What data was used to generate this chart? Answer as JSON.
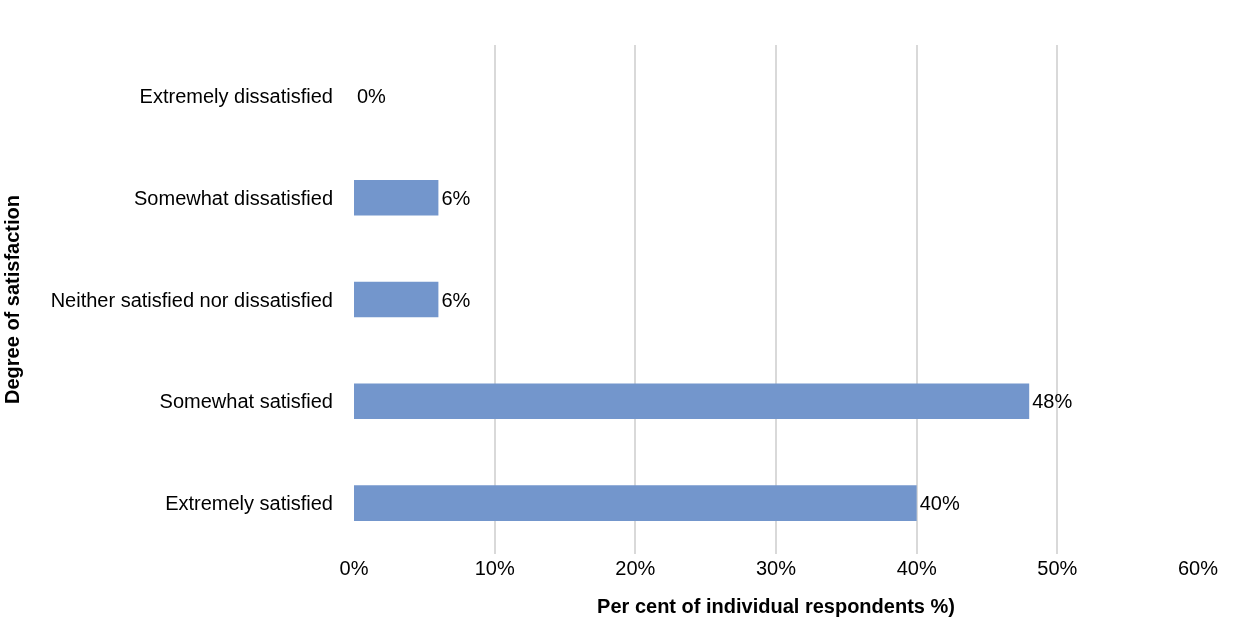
{
  "chart_data": {
    "type": "bar",
    "orientation": "horizontal",
    "xlabel": "Per cent of individual respondents %)",
    "ylabel": "Degree of satisfaction",
    "categories": [
      "Extremely dissatisfied",
      "Somewhat dissatisfied",
      "Neither satisfied nor dissatisfied",
      "Somewhat satisfied",
      "Extremely satisfied"
    ],
    "values": [
      0,
      6,
      6,
      48,
      40
    ],
    "value_labels": [
      "0%",
      "6%",
      "6%",
      "48%",
      "40%"
    ],
    "color": "#7396cc",
    "xlim": [
      0,
      60
    ],
    "xticks": [
      {
        "value": 0,
        "label": "0%"
      },
      {
        "value": 10,
        "label": "10%"
      },
      {
        "value": 20,
        "label": "20%"
      },
      {
        "value": 30,
        "label": "30%"
      },
      {
        "value": 40,
        "label": "40%"
      },
      {
        "value": 50,
        "label": "50%"
      },
      {
        "value": 60,
        "label": "60%"
      }
    ],
    "grid": "x",
    "legend": false
  }
}
